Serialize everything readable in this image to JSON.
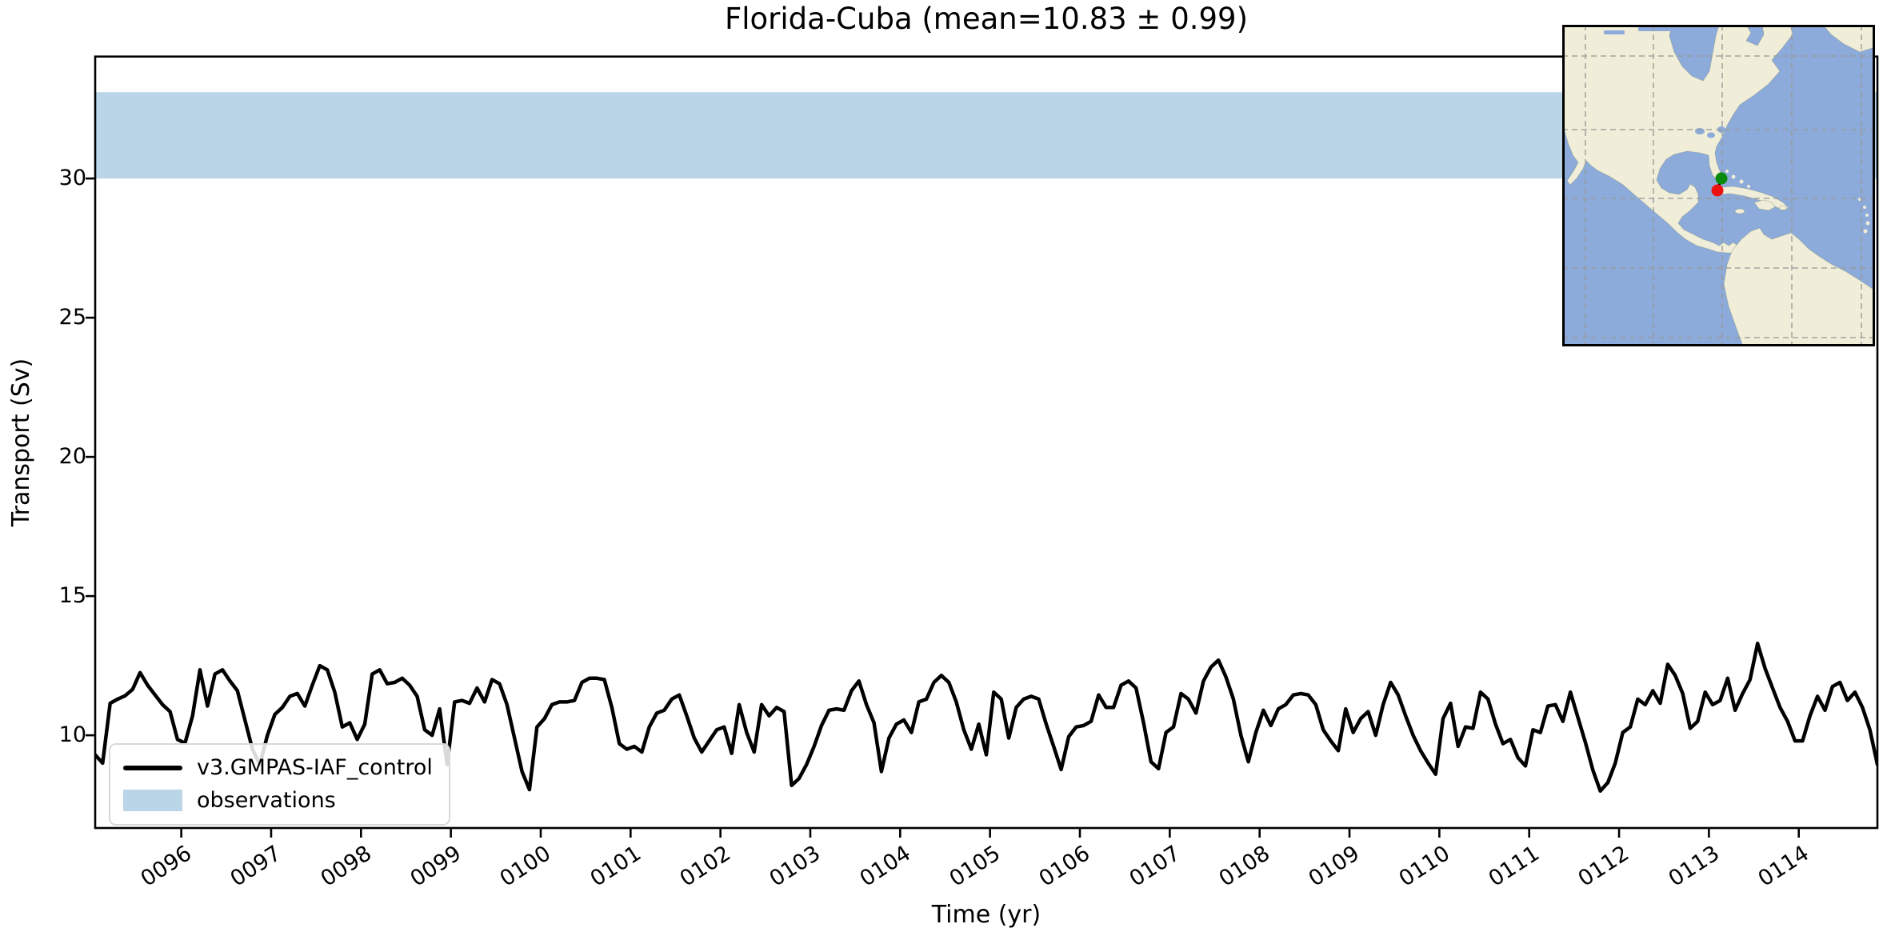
{
  "title": "Florida-Cuba (mean=10.83 ± 0.99)",
  "legend": {
    "line_label": "v3.GMPAS-IAF_control",
    "band_label": "observations"
  },
  "colors": {
    "line": "#000000",
    "band": "#bad4e8",
    "spine": "#000000",
    "map_ocean": "#8cabda",
    "map_land": "#f0edd8",
    "map_grid": "#999999",
    "marker_green": "#0a8a0a",
    "marker_red": "#ee1111"
  },
  "chart_data": {
    "type": "line",
    "title": "Florida-Cuba (mean=10.83 ± 0.99)",
    "xlabel": "Time (yr)",
    "ylabel": "Transport (Sv)",
    "mean": 10.83,
    "std": 0.99,
    "xlim": [
      95.042,
      114.875
    ],
    "ylim": [
      6.67,
      34.38
    ],
    "x_tick_labels": [
      "0096",
      "0097",
      "0098",
      "0099",
      "0100",
      "0101",
      "0102",
      "0103",
      "0104",
      "0105",
      "0106",
      "0107",
      "0108",
      "0109",
      "0110",
      "0111",
      "0112",
      "0113",
      "0114"
    ],
    "x_tick_values": [
      96,
      97,
      98,
      99,
      100,
      101,
      102,
      103,
      104,
      105,
      106,
      107,
      108,
      109,
      110,
      111,
      112,
      113,
      114
    ],
    "y_tick_labels": [
      "10",
      "15",
      "20",
      "25",
      "30"
    ],
    "y_tick_values": [
      10,
      15,
      20,
      25,
      30
    ],
    "grid": false,
    "legend_position": "lower left",
    "obs_band": {
      "label": "observations",
      "range_sv": [
        30.0,
        33.1
      ]
    },
    "series": [
      {
        "name": "v3.GMPAS-IAF_control",
        "units": "Sv",
        "sampling": "monthly",
        "x_start": 95.0417,
        "x_step": 0.083333,
        "values": [
          9.3,
          9.0,
          11.15,
          11.3,
          11.42,
          11.65,
          12.25,
          11.8,
          11.45,
          11.1,
          10.85,
          9.85,
          9.72,
          10.7,
          12.35,
          11.05,
          12.2,
          12.35,
          11.95,
          11.6,
          10.55,
          9.5,
          8.95,
          10.0,
          10.75,
          11.0,
          11.4,
          11.5,
          11.05,
          11.8,
          12.5,
          12.35,
          11.55,
          10.3,
          10.45,
          9.85,
          10.4,
          12.2,
          12.35,
          11.85,
          11.9,
          12.05,
          11.8,
          11.4,
          10.2,
          10.0,
          10.95,
          8.95,
          11.2,
          11.25,
          11.15,
          11.7,
          11.2,
          12.0,
          11.85,
          11.1,
          9.9,
          8.7,
          8.05,
          10.3,
          10.6,
          11.1,
          11.2,
          11.2,
          11.25,
          11.9,
          12.05,
          12.05,
          12.0,
          11.0,
          9.7,
          9.5,
          9.6,
          9.4,
          10.3,
          10.8,
          10.9,
          11.3,
          11.45,
          10.7,
          9.9,
          9.4,
          9.8,
          10.2,
          10.3,
          9.35,
          11.1,
          10.1,
          9.4,
          11.1,
          10.7,
          11.0,
          10.85,
          8.2,
          8.45,
          8.95,
          9.6,
          10.35,
          10.9,
          10.95,
          10.9,
          11.6,
          11.95,
          11.1,
          10.45,
          8.7,
          9.9,
          10.4,
          10.55,
          10.1,
          11.2,
          11.3,
          11.9,
          12.15,
          11.9,
          11.2,
          10.2,
          9.5,
          10.4,
          9.3,
          11.55,
          11.3,
          9.9,
          11.0,
          11.3,
          11.4,
          11.3,
          10.4,
          9.6,
          8.77,
          9.95,
          10.3,
          10.35,
          10.5,
          11.45,
          11.0,
          11.0,
          11.8,
          11.95,
          11.7,
          10.45,
          9.05,
          8.8,
          10.1,
          10.3,
          11.5,
          11.3,
          10.8,
          11.95,
          12.45,
          12.7,
          12.1,
          11.3,
          10.0,
          9.05,
          10.1,
          10.9,
          10.35,
          10.95,
          11.1,
          11.45,
          11.5,
          11.45,
          11.1,
          10.2,
          9.8,
          9.45,
          10.95,
          10.1,
          10.6,
          10.85,
          10.0,
          11.1,
          11.9,
          11.45,
          10.7,
          10.0,
          9.45,
          9.0,
          8.6,
          10.6,
          11.15,
          9.6,
          10.3,
          10.25,
          11.55,
          11.3,
          10.4,
          9.7,
          9.85,
          9.2,
          8.9,
          10.2,
          10.1,
          11.05,
          11.1,
          10.5,
          11.55,
          10.65,
          9.75,
          8.75,
          8.0,
          8.3,
          9.0,
          10.1,
          10.3,
          11.3,
          11.1,
          11.6,
          11.15,
          12.55,
          12.15,
          11.5,
          10.25,
          10.5,
          11.55,
          11.1,
          11.25,
          12.05,
          10.9,
          11.5,
          12.0,
          13.3,
          12.4,
          11.7,
          11.0,
          10.5,
          9.8,
          9.8,
          10.7,
          11.4,
          10.9,
          11.75,
          11.9,
          11.25,
          11.55,
          11.0,
          10.2,
          8.95,
          9.4
        ]
      }
    ]
  },
  "inset_map": {
    "region": "North America / Caribbean",
    "markers": [
      {
        "name": "section-endpoint-florida",
        "color": "#0a8a0a"
      },
      {
        "name": "section-endpoint-cuba",
        "color": "#ee1111"
      }
    ]
  }
}
